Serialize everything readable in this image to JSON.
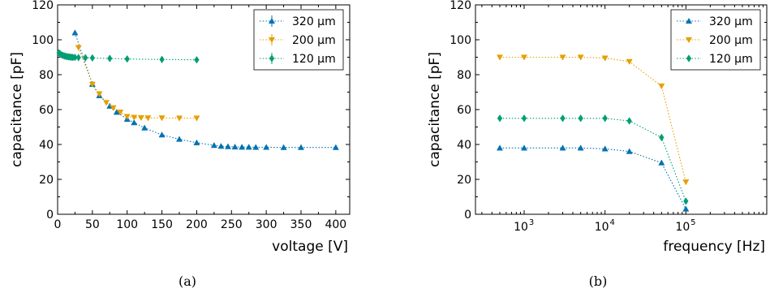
{
  "chart_data": [
    {
      "type": "line",
      "caption": "(a)",
      "xlabel": "voltage [V]",
      "ylabel": "capacitance [pF]",
      "xlim": [
        0,
        420
      ],
      "ylim": [
        0,
        120
      ],
      "xscale": "linear",
      "xticks": [
        0,
        50,
        100,
        150,
        200,
        250,
        300,
        350,
        400
      ],
      "yticks": [
        0,
        20,
        40,
        60,
        80,
        100,
        120
      ],
      "legend_position": "top-right",
      "grid": false,
      "series": [
        {
          "name": "320 µm",
          "color": "#0072b2",
          "marker": "triangle-up",
          "x": [
            25,
            50,
            60,
            75,
            85,
            100,
            110,
            125,
            150,
            175,
            200,
            225,
            235,
            245,
            255,
            265,
            275,
            285,
            300,
            325,
            350,
            400
          ],
          "y": [
            104,
            74.5,
            68,
            62,
            58.5,
            54.5,
            52.5,
            49.5,
            45.5,
            43,
            41,
            39.5,
            39,
            38.8,
            38.6,
            38.5,
            38.5,
            38.4,
            38.4,
            38.3,
            38.3,
            38.3
          ]
        },
        {
          "name": "200 µm",
          "color": "#e69f00",
          "marker": "triangle-down",
          "x": [
            30,
            50,
            60,
            70,
            80,
            90,
            100,
            110,
            120,
            130,
            150,
            175,
            200
          ],
          "y": [
            95.5,
            74.5,
            69,
            64,
            61,
            58.5,
            56,
            55.5,
            55.3,
            55.2,
            55.2,
            55.1,
            55.1
          ]
        },
        {
          "name": "120 µm",
          "color": "#009e73",
          "marker": "diamond",
          "x": [
            2,
            4,
            6,
            8,
            10,
            12,
            14,
            16,
            18,
            20,
            22,
            25,
            30,
            40,
            50,
            75,
            100,
            150,
            200
          ],
          "y": [
            92.5,
            91.8,
            91.3,
            91,
            90.7,
            90.5,
            90.3,
            90.2,
            90.1,
            90,
            89.9,
            89.9,
            89.8,
            89.7,
            89.6,
            89.3,
            89,
            88.7,
            88.5
          ]
        }
      ]
    },
    {
      "type": "line",
      "caption": "(b)",
      "xlabel": "frequency [Hz]",
      "ylabel": "capacitance [pF]",
      "xlim": [
        250,
        1000000
      ],
      "ylim": [
        0,
        120
      ],
      "xscale": "log",
      "xticks": [
        1000,
        10000,
        100000
      ],
      "xtick_labels": [
        [
          "10",
          "3"
        ],
        [
          "10",
          "4"
        ],
        [
          "10",
          "5"
        ]
      ],
      "yticks": [
        0,
        20,
        40,
        60,
        80,
        100,
        120
      ],
      "legend_position": "top-right",
      "grid": false,
      "series": [
        {
          "name": "320 µm",
          "color": "#0072b2",
          "marker": "triangle-up",
          "x": [
            500,
            1000,
            3000,
            5000,
            10000,
            20000,
            50000,
            100000
          ],
          "y": [
            38,
            38,
            38,
            38,
            37.5,
            36,
            29.5,
            3
          ]
        },
        {
          "name": "200 µm",
          "color": "#e69f00",
          "marker": "triangle-down",
          "x": [
            500,
            1000,
            3000,
            5000,
            10000,
            20000,
            50000,
            100000
          ],
          "y": [
            90,
            90,
            90,
            90,
            89.5,
            87.5,
            73.5,
            18.5
          ]
        },
        {
          "name": "120 µm",
          "color": "#009e73",
          "marker": "diamond",
          "x": [
            500,
            1000,
            3000,
            5000,
            10000,
            20000,
            50000,
            100000
          ],
          "y": [
            55,
            55,
            55,
            55,
            55,
            53.5,
            44,
            7.5
          ]
        }
      ]
    }
  ]
}
